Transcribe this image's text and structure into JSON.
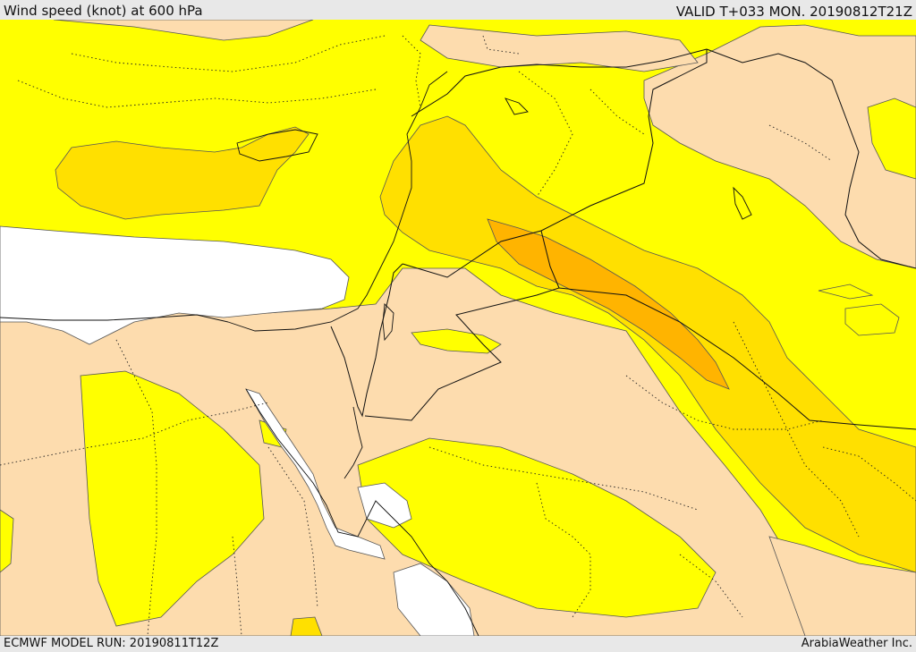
{
  "header": {
    "title": "Wind speed (knot) at 600 hPa",
    "valid": "VALID T+033 MON. 20190812T21Z"
  },
  "footer": {
    "model_run": "ECMWF MODEL RUN: 20190811T12Z",
    "credit": "ArabiaWeather Inc."
  },
  "map": {
    "variable": "wind speed",
    "units": "knot",
    "pressure_level": "600 hPa",
    "colors": {
      "calm": "#ffffff",
      "low": "#fddcae",
      "mid": "#ffff00",
      "high": "#ffe000",
      "higher": "#ffcc00",
      "highest": "#ffb400"
    }
  }
}
